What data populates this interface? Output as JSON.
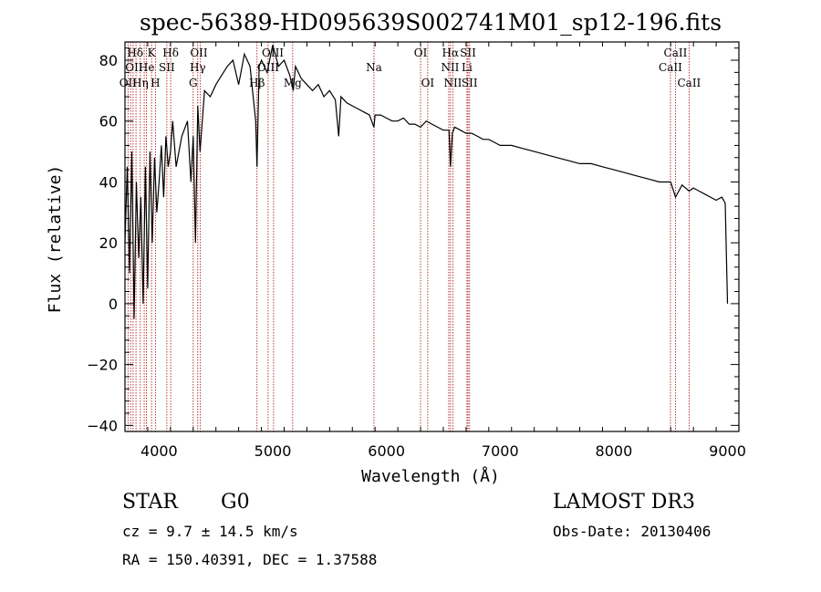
{
  "chart_data": {
    "type": "line",
    "title": "spec-56389-HD095639S002741M01_sp12-196.fits",
    "xlabel": "Wavelength (Å)",
    "ylabel": "Flux (relative)",
    "xlim": [
      3700,
      9100
    ],
    "ylim": [
      -42,
      86
    ],
    "x_ticks": [
      4000,
      5000,
      6000,
      7000,
      8000,
      9000
    ],
    "y_ticks": [
      -40,
      -20,
      0,
      20,
      40,
      60,
      80
    ],
    "series": [
      {
        "name": "flux",
        "x": [
          3700,
          3720,
          3740,
          3760,
          3780,
          3800,
          3820,
          3840,
          3860,
          3880,
          3900,
          3920,
          3940,
          3960,
          3980,
          4000,
          4020,
          4040,
          4060,
          4080,
          4100,
          4120,
          4150,
          4200,
          4250,
          4280,
          4300,
          4320,
          4340,
          4360,
          4400,
          4450,
          4500,
          4550,
          4600,
          4650,
          4700,
          4750,
          4800,
          4850,
          4861,
          4880,
          4900,
          4950,
          5000,
          5050,
          5100,
          5150,
          5180,
          5200,
          5250,
          5300,
          5350,
          5400,
          5450,
          5500,
          5550,
          5580,
          5600,
          5650,
          5700,
          5750,
          5800,
          5850,
          5890,
          5900,
          5950,
          6000,
          6050,
          6100,
          6150,
          6200,
          6250,
          6300,
          6350,
          6400,
          6450,
          6500,
          6550,
          6563,
          6580,
          6600,
          6650,
          6700,
          6750,
          6800,
          6850,
          6900,
          6950,
          7000,
          7100,
          7200,
          7300,
          7400,
          7500,
          7600,
          7700,
          7800,
          7900,
          8000,
          8100,
          8200,
          8300,
          8400,
          8500,
          8542,
          8600,
          8662,
          8700,
          8750,
          8800,
          8850,
          8900,
          8950,
          8980,
          9000
        ],
        "y": [
          20,
          45,
          10,
          50,
          -5,
          40,
          15,
          35,
          0,
          45,
          5,
          50,
          20,
          48,
          30,
          40,
          52,
          35,
          55,
          45,
          50,
          60,
          45,
          55,
          60,
          40,
          55,
          20,
          65,
          50,
          70,
          68,
          72,
          75,
          78,
          80,
          72,
          82,
          78,
          60,
          45,
          78,
          80,
          76,
          85,
          78,
          80,
          75,
          70,
          78,
          74,
          72,
          70,
          72,
          68,
          70,
          67,
          55,
          68,
          66,
          65,
          64,
          63,
          62,
          58,
          62,
          62,
          61,
          60,
          60,
          61,
          59,
          59,
          58,
          60,
          59,
          58,
          57,
          57,
          45,
          56,
          58,
          57,
          56,
          56,
          55,
          54,
          54,
          53,
          52,
          52,
          51,
          50,
          49,
          48,
          47,
          46,
          46,
          45,
          44,
          43,
          42,
          41,
          40,
          40,
          35,
          39,
          37,
          38,
          37,
          36,
          35,
          34,
          35,
          33,
          0
        ],
        "color": "#000000"
      }
    ],
    "lines": [
      {
        "name": "Ca II H&K",
        "x": 3934,
        "label": "K"
      },
      {
        "name": "H delta",
        "x": 4102,
        "label": "Hδ"
      },
      {
        "name": "G band",
        "x": 4300,
        "label": "G"
      },
      {
        "name": "H gamma",
        "x": 4340,
        "label": "Hγ"
      },
      {
        "name": "H beta",
        "x": 4861,
        "label": "Hβ"
      },
      {
        "name": "Na",
        "x": 5890,
        "label": "Na"
      },
      {
        "name": "H alpha",
        "x": 6563,
        "label": "Hα"
      }
    ],
    "line_labels": [
      {
        "text": "Hδ",
        "x": 3790,
        "row": 1
      },
      {
        "text": "K",
        "x": 3934,
        "row": 1
      },
      {
        "text": "Hδ",
        "x": 4102,
        "row": 1
      },
      {
        "text": "OII",
        "x": 4350,
        "row": 1
      },
      {
        "text": "OIII",
        "x": 5000,
        "row": 1
      },
      {
        "text": "OI",
        "x": 6300,
        "row": 1
      },
      {
        "text": "Hα",
        "x": 6563,
        "row": 1
      },
      {
        "text": "SII",
        "x": 6717,
        "row": 1
      },
      {
        "text": "CaII",
        "x": 8542,
        "row": 1
      },
      {
        "text": "OII",
        "x": 3780,
        "row": 2
      },
      {
        "text": "He",
        "x": 3890,
        "row": 2
      },
      {
        "text": "SII",
        "x": 4068,
        "row": 2
      },
      {
        "text": "Hγ",
        "x": 4340,
        "row": 2
      },
      {
        "text": "OIII",
        "x": 4959,
        "row": 2
      },
      {
        "text": "Na",
        "x": 5890,
        "row": 2
      },
      {
        "text": "NII",
        "x": 6560,
        "row": 2
      },
      {
        "text": "Li",
        "x": 6708,
        "row": 2
      },
      {
        "text": "CaII",
        "x": 8498,
        "row": 2
      },
      {
        "text": "OII",
        "x": 3727,
        "row": 3
      },
      {
        "text": "Hη",
        "x": 3835,
        "row": 3
      },
      {
        "text": "H",
        "x": 3968,
        "row": 3
      },
      {
        "text": "G",
        "x": 4300,
        "row": 3
      },
      {
        "text": "Hβ",
        "x": 4861,
        "row": 3
      },
      {
        "text": "Mg",
        "x": 5175,
        "row": 3
      },
      {
        "text": "OI",
        "x": 6363,
        "row": 3
      },
      {
        "text": "NII",
        "x": 6584,
        "row": 3
      },
      {
        "text": "SII",
        "x": 6731,
        "row": 3
      },
      {
        "text": "CaII",
        "x": 8662,
        "row": 3
      }
    ],
    "marker_lines_x": [
      3727,
      3750,
      3771,
      3797,
      3835,
      3869,
      3889,
      3934,
      3968,
      4068,
      4102,
      4300,
      4340,
      4363,
      4861,
      4959,
      5007,
      5175,
      5890,
      6300,
      6363,
      6548,
      6563,
      6584,
      6708,
      6717,
      6731,
      8498,
      8542,
      8662
    ]
  },
  "info": {
    "object_class": "STAR",
    "subclass": "G0",
    "survey": "LAMOST DR3",
    "cz": "cz = 9.7 ± 14.5 km/s",
    "obs_date": "Obs-Date: 20130406",
    "coords": "RA = 150.40391, DEC =    1.37588"
  }
}
